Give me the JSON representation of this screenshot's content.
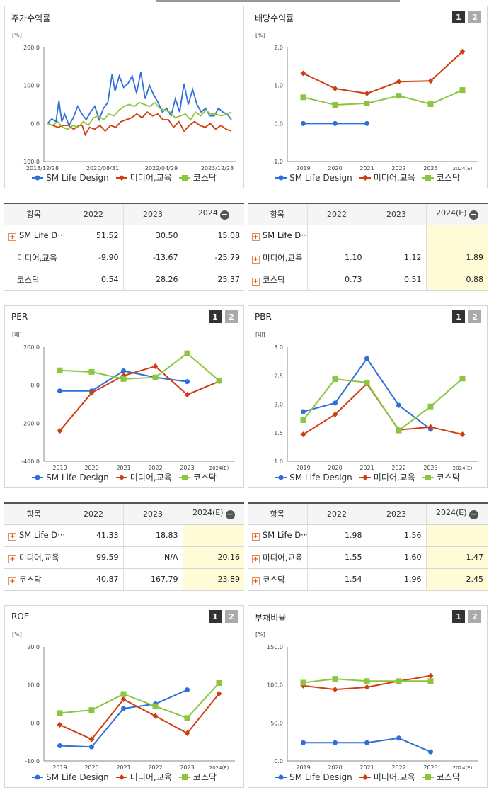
{
  "colors": {
    "sm": "#2e6fd8",
    "media": "#d03d10",
    "kosdaq": "#8cc63f"
  },
  "series_names": [
    "SM Life Design",
    "미디어,교육",
    "코스닥"
  ],
  "charts": {
    "stock": {
      "title": "주가수익률",
      "unit": "[%]",
      "type": "line",
      "yticks": [
        "200.0",
        "100.0",
        "0.0",
        "-100.0"
      ],
      "ylim": [
        -100,
        200
      ],
      "xticks": [
        "2018/12/28",
        "2020/08/31",
        "2022/04/29",
        "2023/12/28"
      ]
    },
    "dividend": {
      "title": "배당수익률",
      "unit": "[%]",
      "type": "line",
      "yticks": [
        "2.0",
        "1.0",
        "0.0",
        "-1.0"
      ],
      "ylim": [
        -1,
        2
      ],
      "categories": [
        "2019",
        "2020",
        "2021",
        "2022",
        "2023",
        "2024(E)"
      ],
      "series": [
        {
          "name": "SM Life Design",
          "values": [
            0.0,
            0.0,
            0.0,
            null,
            null,
            null
          ]
        },
        {
          "name": "미디어,교육",
          "values": [
            1.32,
            0.92,
            0.79,
            1.1,
            1.12,
            1.89
          ]
        },
        {
          "name": "코스닥",
          "values": [
            0.69,
            0.49,
            0.53,
            0.73,
            0.51,
            0.88
          ]
        }
      ]
    },
    "per": {
      "title": "PER",
      "unit": "[배]",
      "type": "line",
      "yticks": [
        "200.0",
        "0.0",
        "-200.0",
        "-400.0"
      ],
      "ylim": [
        -400,
        200
      ],
      "categories": [
        "2019",
        "2020",
        "2021",
        "2022",
        "2023",
        "2024(E)"
      ],
      "series": [
        {
          "name": "SM Life Design",
          "values": [
            -30,
            -30,
            75,
            41.33,
            18.83,
            null
          ]
        },
        {
          "name": "미디어,교육",
          "values": [
            -240,
            -40,
            50,
            99.59,
            -50,
            20.16
          ]
        },
        {
          "name": "코스닥",
          "values": [
            78,
            70,
            33,
            40.87,
            167.79,
            23.89
          ]
        }
      ]
    },
    "pbr": {
      "title": "PBR",
      "unit": "[배]",
      "type": "line",
      "yticks": [
        "3.0",
        "2.5",
        "2.0",
        "1.5",
        "1.0"
      ],
      "ylim": [
        1,
        3
      ],
      "categories": [
        "2019",
        "2020",
        "2021",
        "2022",
        "2023",
        "2024(E)"
      ],
      "series": [
        {
          "name": "SM Life Design",
          "values": [
            1.87,
            2.02,
            2.8,
            1.98,
            1.56,
            null
          ]
        },
        {
          "name": "미디어,교육",
          "values": [
            1.47,
            1.82,
            2.36,
            1.55,
            1.6,
            1.47
          ]
        },
        {
          "name": "코스닥",
          "values": [
            1.72,
            2.44,
            2.38,
            1.54,
            1.96,
            2.45
          ]
        }
      ]
    },
    "roe": {
      "title": "ROE",
      "unit": "[%]",
      "type": "line",
      "yticks": [
        "20.0",
        "10.0",
        "0.0",
        "-10.0"
      ],
      "ylim": [
        -10,
        20
      ],
      "categories": [
        "2019",
        "2020",
        "2021",
        "2022",
        "2023",
        "2024(E)"
      ],
      "series": [
        {
          "name": "SM Life Design",
          "values": [
            -6.0,
            -6.3,
            3.8,
            5.0,
            8.7,
            null
          ]
        },
        {
          "name": "미디어,교육",
          "values": [
            -0.5,
            -4.3,
            6.2,
            1.8,
            -2.7,
            7.7
          ]
        },
        {
          "name": "코스닥",
          "values": [
            2.6,
            3.4,
            7.6,
            4.4,
            1.3,
            10.5
          ]
        }
      ]
    },
    "debt": {
      "title": "부채비율",
      "unit": "[%]",
      "type": "line",
      "yticks": [
        "150.0",
        "100.0",
        "50.0",
        "0.0"
      ],
      "ylim": [
        0,
        150
      ],
      "categories": [
        "2019",
        "2020",
        "2021",
        "2022",
        "2023",
        "2024(E)"
      ],
      "series": [
        {
          "name": "SM Life Design",
          "values": [
            24,
            24,
            24,
            30,
            12,
            null
          ]
        },
        {
          "name": "미디어,교육",
          "values": [
            99,
            94,
            97,
            105,
            112,
            null
          ]
        },
        {
          "name": "코스닥",
          "values": [
            103,
            108,
            105,
            105,
            105,
            null
          ]
        }
      ]
    }
  },
  "tables": {
    "stock": {
      "headers": [
        "항목",
        "2022",
        "2023",
        "2024"
      ],
      "rows": [
        {
          "name": "SM Life D···",
          "values": [
            "51.52",
            "30.50",
            "15.08"
          ]
        },
        {
          "name": "미디어,교육",
          "values": [
            "-9.90",
            "-13.67",
            "-25.79"
          ]
        },
        {
          "name": "코스닥",
          "values": [
            "0.54",
            "28.26",
            "25.37"
          ]
        }
      ]
    },
    "dividend": {
      "headers": [
        "항목",
        "2022",
        "2023",
        "2024(E)"
      ],
      "rows": [
        {
          "name": "SM Life D···",
          "values": [
            "",
            "",
            ""
          ]
        },
        {
          "name": "미디어,교육",
          "values": [
            "1.10",
            "1.12",
            "1.89"
          ]
        },
        {
          "name": "코스닥",
          "values": [
            "0.73",
            "0.51",
            "0.88"
          ]
        }
      ]
    },
    "per": {
      "headers": [
        "항목",
        "2022",
        "2023",
        "2024(E)"
      ],
      "rows": [
        {
          "name": "SM Life D···",
          "values": [
            "41.33",
            "18.83",
            ""
          ]
        },
        {
          "name": "미디어,교육",
          "values": [
            "99.59",
            "N/A",
            "20.16"
          ]
        },
        {
          "name": "코스닥",
          "values": [
            "40.87",
            "167.79",
            "23.89"
          ]
        }
      ]
    },
    "pbr": {
      "headers": [
        "항목",
        "2022",
        "2023",
        "2024(E)"
      ],
      "rows": [
        {
          "name": "SM Life D···",
          "values": [
            "1.98",
            "1.56",
            ""
          ]
        },
        {
          "name": "미디어,교육",
          "values": [
            "1.55",
            "1.60",
            "1.47"
          ]
        },
        {
          "name": "코스닥",
          "values": [
            "1.54",
            "1.96",
            "2.45"
          ]
        }
      ]
    }
  },
  "buttons": {
    "one": "1",
    "two": "2"
  }
}
